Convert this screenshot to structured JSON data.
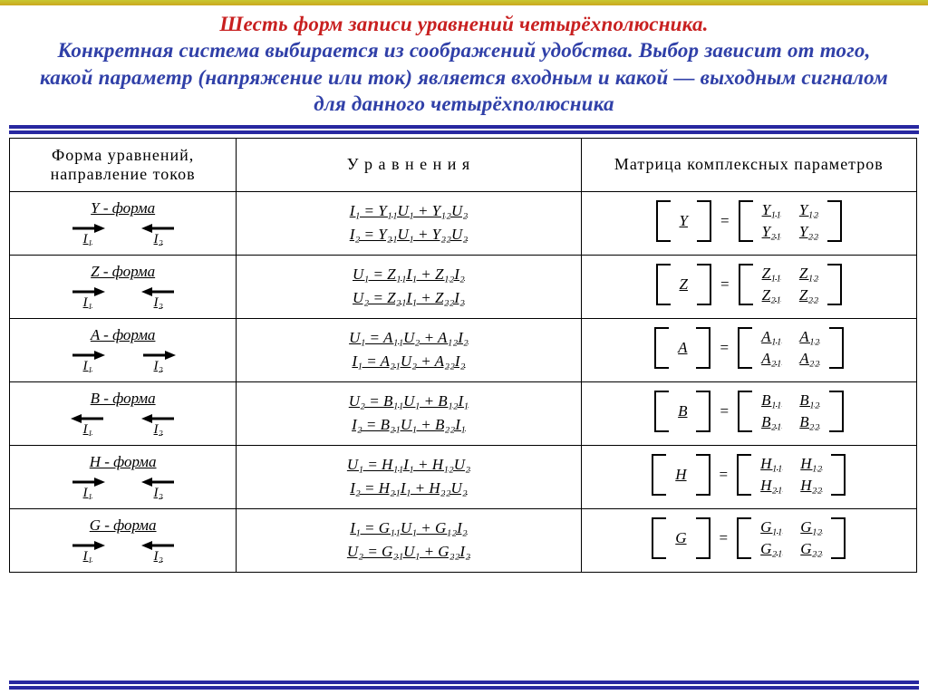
{
  "title": {
    "red": "Шесть форм записи уравнений четырёхполюсника.",
    "blue": "Конкретная система выбирается из соображений удобства. Выбор зависит от того, какой параметр (напряжение или ток) является входным и какой — выходным сигналом для данного четырёхполюсника"
  },
  "headers": {
    "c1": "Форма уравнений, направление токов",
    "c2": "У р а в н е н и я",
    "c3": "Матрица комплексных параметров"
  },
  "forms": [
    {
      "name": "Y - форма",
      "i1_dir": "right",
      "i2_dir": "left",
      "eq1": "I₁ = Y₁₁U₁ + Y₁₂U₂",
      "eq2": "I₂ = Y₂₁U₁ + Y₂₂U₂",
      "sym": "Y",
      "m11": "Y₁₁",
      "m12": "Y₁₂",
      "m21": "Y₂₁",
      "m22": "Y₂₂"
    },
    {
      "name": "Z - форма",
      "i1_dir": "right",
      "i2_dir": "left",
      "eq1": "U₁ = Z₁₁I₁ + Z₁₂I₂",
      "eq2": "U₂ = Z₂₁I₁ + Z₂₂I₂",
      "sym": "Z",
      "m11": "Z₁₁",
      "m12": "Z₁₂",
      "m21": "Z₂₁",
      "m22": "Z₂₂"
    },
    {
      "name": "A - форма",
      "i1_dir": "right",
      "i2_dir": "right",
      "eq1": "U₁ = A₁₁U₂ + A₁₂I₂",
      "eq2": "I₁ = A₂₁U₂ + A₂₂I₂",
      "sym": "A",
      "m11": "A₁₁",
      "m12": "A₁₂",
      "m21": "A₂₁",
      "m22": "A₂₂"
    },
    {
      "name": "B - форма",
      "i1_dir": "left",
      "i2_dir": "left",
      "eq1": "U₂ = B₁₁U₁ + B₁₂I₁",
      "eq2": "I₂ = B₂₁U₁ + B₂₂I₁",
      "sym": "B",
      "m11": "B₁₁",
      "m12": "B₁₂",
      "m21": "B₂₁",
      "m22": "B₂₂"
    },
    {
      "name": "H - форма",
      "i1_dir": "right",
      "i2_dir": "left",
      "eq1": "U₁ = H₁₁I₁ + H₁₂U₂",
      "eq2": "I₂ = H₂₁I₁ + H₂₂U₂",
      "sym": "H",
      "m11": "H₁₁",
      "m12": "H₁₂",
      "m21": "H₂₁",
      "m22": "H₂₂"
    },
    {
      "name": "G - форма",
      "i1_dir": "right",
      "i2_dir": "left",
      "eq1": "I₁ = G₁₁U₁ + G₁₂I₂",
      "eq2": "U₂ = G₂₁U₁ + G₂₂I₂",
      "sym": "G",
      "m11": "G₁₁",
      "m12": "G₁₂",
      "m21": "G₂₁",
      "m22": "G₂₂"
    }
  ],
  "arrow_labels": {
    "i1": "I₁",
    "i2": "I₂"
  },
  "colors": {
    "red": "#c82020",
    "blue": "#3040a8",
    "gold": "#cca820",
    "rule": "#2828a0",
    "black": "#000000"
  }
}
